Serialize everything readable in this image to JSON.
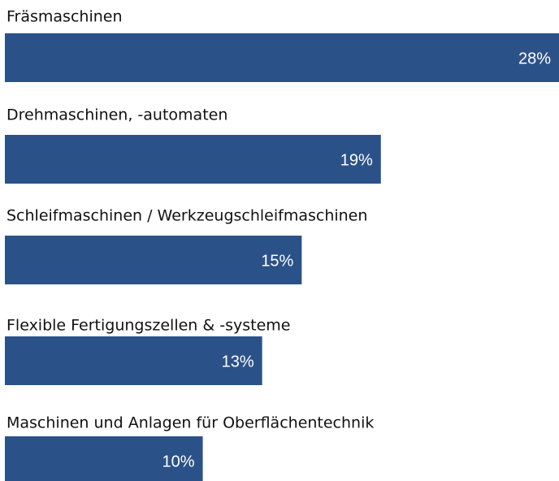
{
  "chart_data": {
    "type": "bar",
    "orientation": "horizontal",
    "categories": [
      "Fräsmaschinen",
      "Drehmaschinen, -automaten",
      "Schleifmaschinen / Werkzeugschleifmaschinen",
      "Flexible Fertigungszellen & -systeme",
      "Maschinen und Anlagen für Oberflächentechnik"
    ],
    "values": [
      28,
      19,
      15,
      13,
      10
    ],
    "value_labels": [
      "28%",
      "19%",
      "15%",
      "13%",
      "10%"
    ],
    "color": "#2b5288"
  }
}
